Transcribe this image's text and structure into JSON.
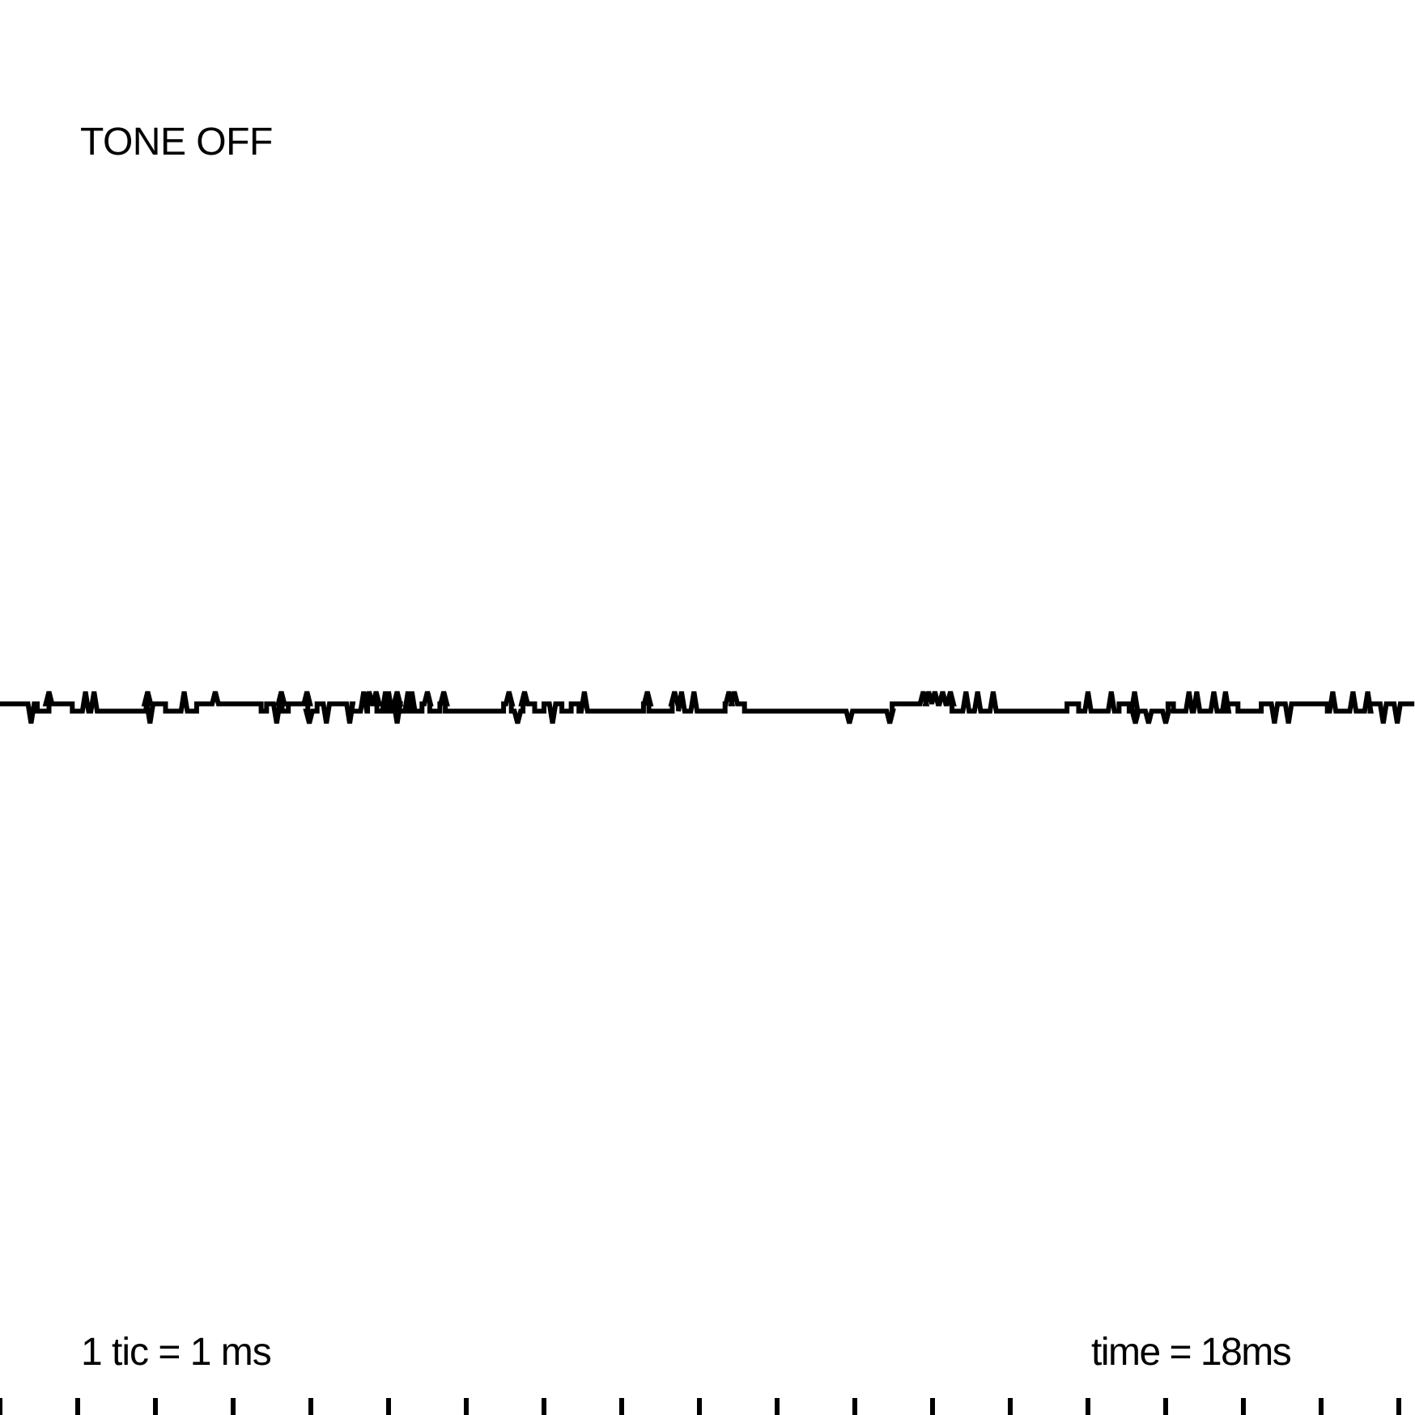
{
  "status_text": "TONE OFF",
  "scale_text": "1 tic = 1 ms",
  "time_text": "time = 18ms",
  "colors": {
    "background": "#ffffff",
    "trace": "#000000"
  },
  "chart_data": {
    "type": "line",
    "title": "",
    "xlabel": "",
    "ylabel": "",
    "x_unit": "ms",
    "tick_interval": 1,
    "xlim": [
      0,
      18.2
    ],
    "ylim": [
      -5,
      5
    ],
    "grid": false,
    "series": [
      {
        "baseline_steps": [
          {
            "t": 0.0,
            "level": 0.45
          },
          {
            "t": 0.48,
            "level": -0.45
          },
          {
            "t": 0.63,
            "level": 0.45
          },
          {
            "t": 0.93,
            "level": -0.45
          },
          {
            "t": 1.88,
            "level": 0.45
          },
          {
            "t": 2.13,
            "level": -0.45
          },
          {
            "t": 2.53,
            "level": 0.45
          },
          {
            "t": 3.36,
            "level": -0.45
          },
          {
            "t": 3.43,
            "level": 0.45
          },
          {
            "t": 3.63,
            "level": -0.45
          },
          {
            "t": 3.71,
            "level": 0.45
          },
          {
            "t": 3.96,
            "level": -0.45
          },
          {
            "t": 4.08,
            "level": 0.45
          },
          {
            "t": 4.53,
            "level": -0.45
          },
          {
            "t": 4.73,
            "level": 0.45
          },
          {
            "t": 4.85,
            "level": -0.45
          },
          {
            "t": 5.03,
            "level": 0.45
          },
          {
            "t": 5.13,
            "level": -0.45
          },
          {
            "t": 5.43,
            "level": 0.45
          },
          {
            "t": 5.53,
            "level": -0.45
          },
          {
            "t": 5.66,
            "level": 0.45
          },
          {
            "t": 5.73,
            "level": -0.45
          },
          {
            "t": 6.48,
            "level": 0.45
          },
          {
            "t": 6.58,
            "level": -0.45
          },
          {
            "t": 6.73,
            "level": 0.45
          },
          {
            "t": 6.88,
            "level": -0.45
          },
          {
            "t": 7.0,
            "level": 0.45
          },
          {
            "t": 7.23,
            "level": -0.45
          },
          {
            "t": 7.35,
            "level": 0.45
          },
          {
            "t": 7.45,
            "level": -0.45
          },
          {
            "t": 8.28,
            "level": 0.45
          },
          {
            "t": 8.35,
            "level": -0.45
          },
          {
            "t": 8.65,
            "level": 0.45
          },
          {
            "t": 8.73,
            "level": -0.45
          },
          {
            "t": 9.33,
            "level": 0.45
          },
          {
            "t": 9.58,
            "level": -0.45
          },
          {
            "t": 11.48,
            "level": 0.45
          },
          {
            "t": 12.25,
            "level": -0.45
          },
          {
            "t": 13.73,
            "level": 0.45
          },
          {
            "t": 13.88,
            "level": -0.45
          },
          {
            "t": 14.4,
            "level": 0.45
          },
          {
            "t": 14.53,
            "level": -0.45
          },
          {
            "t": 15.03,
            "level": 0.45
          },
          {
            "t": 15.1,
            "level": -0.45
          },
          {
            "t": 15.78,
            "level": 0.45
          },
          {
            "t": 15.93,
            "level": -0.45
          },
          {
            "t": 16.23,
            "level": 0.45
          },
          {
            "t": 17.08,
            "level": -0.45
          },
          {
            "t": 17.63,
            "level": 0.45
          }
        ],
        "spikes_up": [
          0.63,
          1.1,
          1.21,
          1.9,
          2.37,
          2.77,
          3.62,
          3.95,
          4.68,
          4.75,
          4.84,
          4.96,
          5.0,
          5.11,
          5.25,
          5.3,
          5.5,
          5.71,
          6.55,
          6.75,
          7.52,
          8.33,
          8.68,
          8.77,
          8.93,
          9.38,
          9.45,
          11.88,
          11.95,
          12.03,
          12.13,
          12.23,
          12.43,
          12.58,
          12.78,
          14.0,
          14.3,
          14.6,
          15.3,
          15.4,
          15.62,
          15.77,
          17.15,
          17.41,
          17.6
        ],
        "spikes_down": [
          0.4,
          1.93,
          3.56,
          3.98,
          4.2,
          4.5,
          5.11,
          6.66,
          7.11,
          10.93,
          11.45,
          14.61,
          14.78,
          15.0,
          16.4,
          16.58,
          17.8,
          17.98
        ]
      }
    ]
  }
}
